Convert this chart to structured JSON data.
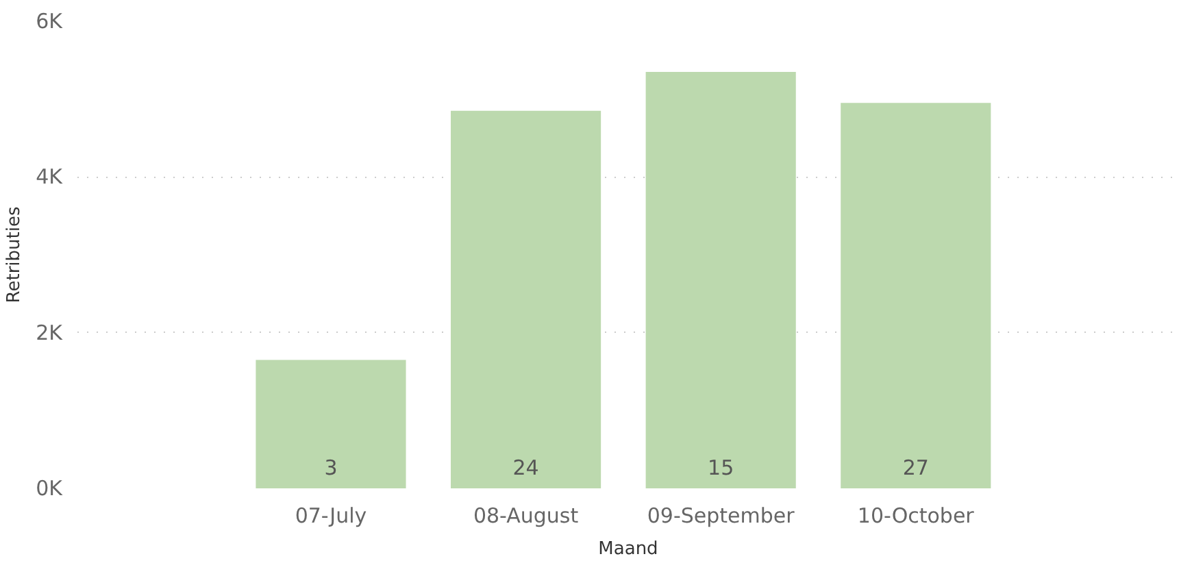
{
  "chart_data": {
    "type": "bar",
    "xlabel": "Maand",
    "ylabel": "Retributies",
    "categories": [
      "07-July",
      "08-August",
      "09-September",
      "10-October"
    ],
    "values": [
      1650,
      4850,
      5350,
      4950
    ],
    "annotations": [
      "3",
      "24",
      "15",
      "27"
    ],
    "color": "#bcd9ae",
    "ylim": [
      0,
      6000
    ],
    "yticks": [
      {
        "value": 0,
        "label": "0K"
      },
      {
        "value": 2000,
        "label": "2K"
      },
      {
        "value": 4000,
        "label": "4K"
      },
      {
        "value": 6000,
        "label": "6K"
      }
    ],
    "grid": "y"
  }
}
